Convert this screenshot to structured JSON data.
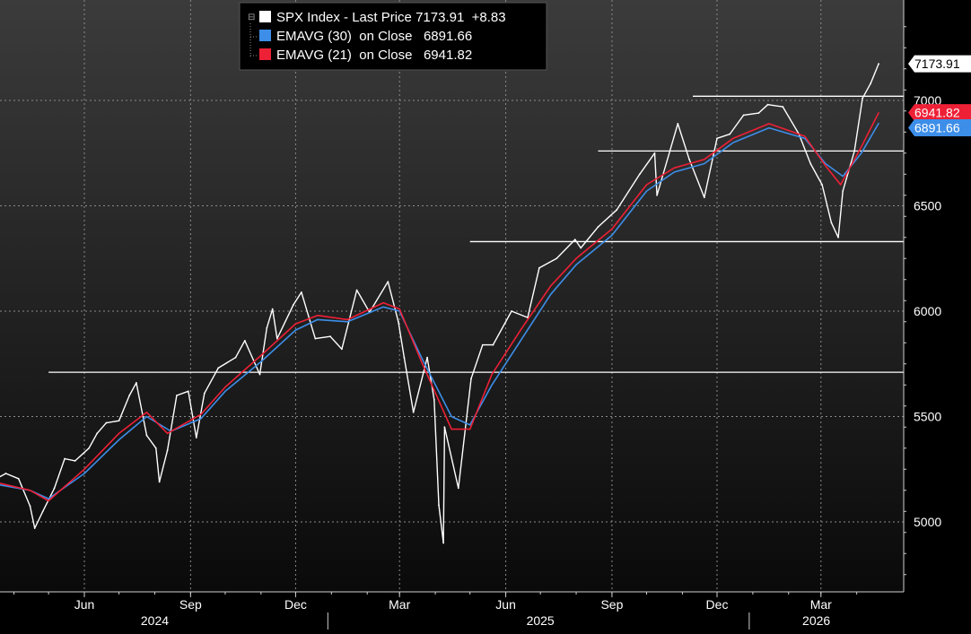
{
  "legend": {
    "rows": [
      {
        "text": "SPX Index - Last Price 7173.91  +8.83",
        "color": "#ffffff"
      },
      {
        "text": "EMAVG (30)  on Close   6891.66",
        "color": "#3d8ee8"
      },
      {
        "text": "EMAVG (21)  on Close   6941.82",
        "color": "#ee2036"
      }
    ]
  },
  "price_tags": [
    {
      "label": "7173.91",
      "value": 7173.91,
      "bg": "#ffffff",
      "fg": "#000000"
    },
    {
      "label": "6941.82",
      "value": 6941.82,
      "bg": "#ee2036",
      "fg": "#ffffff"
    },
    {
      "label": "6891.66",
      "value": 6891.66,
      "bg": "#3d8ee8",
      "fg": "#ffffff"
    }
  ],
  "chart_data": {
    "type": "line",
    "title": "SPX Index - Last Price",
    "x_axis": {
      "range": [
        "2024-03-15",
        "2026-04-25"
      ],
      "month_ticks": [
        {
          "label": "Jun",
          "date": "2024-06-01"
        },
        {
          "label": "Sep",
          "date": "2024-09-01"
        },
        {
          "label": "Dec",
          "date": "2024-12-01"
        },
        {
          "label": "Mar",
          "date": "2025-03-01"
        },
        {
          "label": "Jun",
          "date": "2025-06-01"
        },
        {
          "label": "Sep",
          "date": "2025-09-01"
        },
        {
          "label": "Dec",
          "date": "2025-12-01"
        },
        {
          "label": "Mar",
          "date": "2026-03-01"
        }
      ],
      "year_labels": [
        {
          "label": "2024",
          "date": "2024-08-01"
        },
        {
          "label": "2025",
          "date": "2025-07-01"
        },
        {
          "label": "2026",
          "date": "2026-02-25"
        }
      ],
      "year_separators": [
        "2025-01-01",
        "2026-01-01"
      ]
    },
    "y_axis": {
      "range": [
        4650,
        7400
      ],
      "ticks": [
        5000,
        5500,
        6000,
        6500,
        7000
      ],
      "grid": true,
      "side": "right"
    },
    "horizontal_lines": [
      {
        "value": 5710,
        "from": "2024-05-01"
      },
      {
        "value": 6330,
        "from": "2025-05-01"
      },
      {
        "value": 6760,
        "from": "2025-08-20"
      },
      {
        "value": 7020,
        "from": "2025-11-10"
      }
    ],
    "series": [
      {
        "name": "SPX Index - Last Price",
        "color": "#ffffff",
        "points": [
          [
            "2024-03-15",
            5200
          ],
          [
            "2024-03-25",
            5230
          ],
          [
            "2024-04-05",
            5205
          ],
          [
            "2024-04-15",
            5075
          ],
          [
            "2024-04-19",
            4970
          ],
          [
            "2024-04-26",
            5050
          ],
          [
            "2024-05-06",
            5160
          ],
          [
            "2024-05-15",
            5300
          ],
          [
            "2024-05-24",
            5290
          ],
          [
            "2024-06-05",
            5350
          ],
          [
            "2024-06-12",
            5420
          ],
          [
            "2024-06-20",
            5470
          ],
          [
            "2024-07-01",
            5480
          ],
          [
            "2024-07-10",
            5600
          ],
          [
            "2024-07-16",
            5660
          ],
          [
            "2024-07-25",
            5410
          ],
          [
            "2024-08-02",
            5350
          ],
          [
            "2024-08-05",
            5190
          ],
          [
            "2024-08-12",
            5340
          ],
          [
            "2024-08-20",
            5600
          ],
          [
            "2024-08-30",
            5620
          ],
          [
            "2024-09-06",
            5400
          ],
          [
            "2024-09-13",
            5610
          ],
          [
            "2024-09-25",
            5730
          ],
          [
            "2024-10-10",
            5780
          ],
          [
            "2024-10-18",
            5860
          ],
          [
            "2024-10-31",
            5700
          ],
          [
            "2024-11-06",
            5920
          ],
          [
            "2024-11-11",
            6010
          ],
          [
            "2024-11-15",
            5870
          ],
          [
            "2024-11-29",
            6030
          ],
          [
            "2024-12-06",
            6090
          ],
          [
            "2024-12-18",
            5870
          ],
          [
            "2024-12-31",
            5880
          ],
          [
            "2025-01-10",
            5820
          ],
          [
            "2025-01-23",
            6100
          ],
          [
            "2025-02-03",
            5995
          ],
          [
            "2025-02-19",
            6140
          ],
          [
            "2025-02-28",
            5950
          ],
          [
            "2025-03-05",
            5780
          ],
          [
            "2025-03-13",
            5520
          ],
          [
            "2025-03-25",
            5780
          ],
          [
            "2025-03-31",
            5580
          ],
          [
            "2025-04-04",
            5080
          ],
          [
            "2025-04-08",
            4900
          ],
          [
            "2025-04-09",
            5450
          ],
          [
            "2025-04-21",
            5160
          ],
          [
            "2025-05-02",
            5680
          ],
          [
            "2025-05-12",
            5840
          ],
          [
            "2025-05-21",
            5840
          ],
          [
            "2025-06-06",
            6000
          ],
          [
            "2025-06-20",
            5970
          ],
          [
            "2025-06-30",
            6205
          ],
          [
            "2025-07-15",
            6250
          ],
          [
            "2025-07-31",
            6340
          ],
          [
            "2025-08-05",
            6300
          ],
          [
            "2025-08-20",
            6400
          ],
          [
            "2025-09-05",
            6480
          ],
          [
            "2025-09-25",
            6650
          ],
          [
            "2025-10-08",
            6750
          ],
          [
            "2025-10-10",
            6550
          ],
          [
            "2025-10-28",
            6890
          ],
          [
            "2025-11-07",
            6720
          ],
          [
            "2025-11-20",
            6540
          ],
          [
            "2025-12-01",
            6820
          ],
          [
            "2025-12-12",
            6840
          ],
          [
            "2025-12-24",
            6930
          ],
          [
            "2026-01-06",
            6940
          ],
          [
            "2026-01-14",
            6980
          ],
          [
            "2026-01-27",
            6970
          ],
          [
            "2026-02-10",
            6840
          ],
          [
            "2026-02-20",
            6700
          ],
          [
            "2026-03-02",
            6600
          ],
          [
            "2026-03-10",
            6420
          ],
          [
            "2026-03-16",
            6350
          ],
          [
            "2026-03-20",
            6570
          ],
          [
            "2026-03-30",
            6760
          ],
          [
            "2026-04-06",
            7010
          ],
          [
            "2026-04-13",
            7080
          ],
          [
            "2026-04-20",
            7173.91
          ]
        ]
      },
      {
        "name": "EMAVG (30)",
        "color": "#3d8ee8",
        "points": [
          [
            "2024-03-15",
            5180
          ],
          [
            "2024-04-15",
            5150
          ],
          [
            "2024-05-01",
            5110
          ],
          [
            "2024-06-01",
            5230
          ],
          [
            "2024-07-01",
            5390
          ],
          [
            "2024-07-25",
            5500
          ],
          [
            "2024-08-15",
            5430
          ],
          [
            "2024-09-10",
            5490
          ],
          [
            "2024-10-01",
            5620
          ],
          [
            "2024-11-01",
            5760
          ],
          [
            "2024-12-01",
            5910
          ],
          [
            "2024-12-20",
            5960
          ],
          [
            "2025-01-15",
            5950
          ],
          [
            "2025-02-15",
            6020
          ],
          [
            "2025-03-01",
            6000
          ],
          [
            "2025-03-20",
            5780
          ],
          [
            "2025-04-15",
            5500
          ],
          [
            "2025-05-01",
            5460
          ],
          [
            "2025-05-20",
            5650
          ],
          [
            "2025-06-15",
            5870
          ],
          [
            "2025-07-10",
            6080
          ],
          [
            "2025-08-01",
            6220
          ],
          [
            "2025-09-01",
            6360
          ],
          [
            "2025-10-01",
            6570
          ],
          [
            "2025-10-25",
            6660
          ],
          [
            "2025-11-20",
            6700
          ],
          [
            "2025-12-15",
            6800
          ],
          [
            "2026-01-15",
            6870
          ],
          [
            "2026-02-15",
            6820
          ],
          [
            "2026-03-05",
            6700
          ],
          [
            "2026-03-20",
            6640
          ],
          [
            "2026-04-05",
            6750
          ],
          [
            "2026-04-20",
            6891.66
          ]
        ]
      },
      {
        "name": "EMAVG (21)",
        "color": "#ee2036",
        "points": [
          [
            "2024-03-15",
            5190
          ],
          [
            "2024-04-15",
            5150
          ],
          [
            "2024-05-01",
            5100
          ],
          [
            "2024-06-01",
            5250
          ],
          [
            "2024-07-01",
            5420
          ],
          [
            "2024-07-25",
            5520
          ],
          [
            "2024-08-12",
            5420
          ],
          [
            "2024-09-10",
            5510
          ],
          [
            "2024-10-01",
            5640
          ],
          [
            "2024-11-01",
            5790
          ],
          [
            "2024-12-01",
            5940
          ],
          [
            "2024-12-20",
            5980
          ],
          [
            "2025-01-15",
            5960
          ],
          [
            "2025-02-15",
            6040
          ],
          [
            "2025-03-01",
            6010
          ],
          [
            "2025-03-20",
            5760
          ],
          [
            "2025-04-15",
            5440
          ],
          [
            "2025-05-01",
            5440
          ],
          [
            "2025-05-20",
            5700
          ],
          [
            "2025-06-15",
            5920
          ],
          [
            "2025-07-10",
            6120
          ],
          [
            "2025-08-01",
            6250
          ],
          [
            "2025-09-01",
            6390
          ],
          [
            "2025-10-01",
            6600
          ],
          [
            "2025-10-25",
            6680
          ],
          [
            "2025-11-20",
            6720
          ],
          [
            "2025-12-15",
            6820
          ],
          [
            "2026-01-15",
            6890
          ],
          [
            "2026-02-15",
            6830
          ],
          [
            "2026-03-05",
            6690
          ],
          [
            "2026-03-18",
            6600
          ],
          [
            "2026-04-05",
            6780
          ],
          [
            "2026-04-20",
            6941.82
          ]
        ]
      }
    ]
  }
}
